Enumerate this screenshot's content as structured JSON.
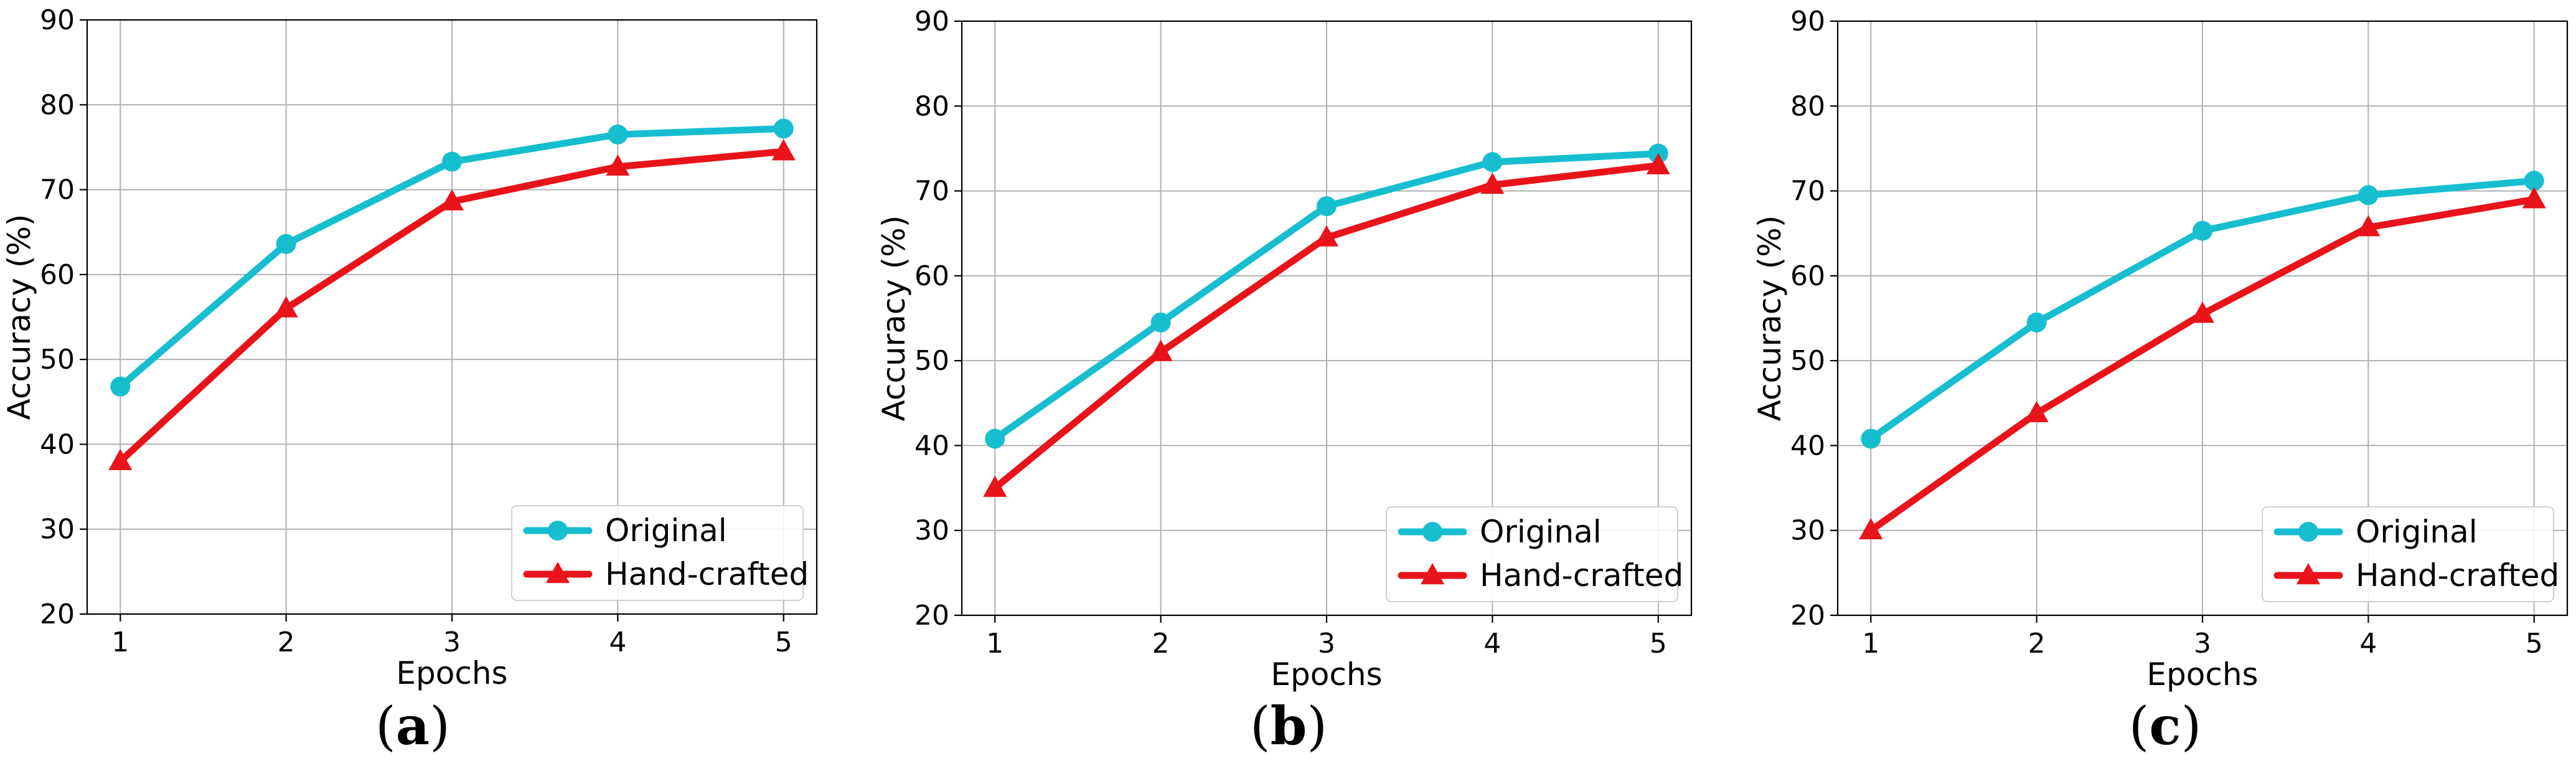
{
  "chart_data": [
    {
      "type": "line",
      "panel_label": "(a)",
      "panel_letter": "a",
      "xlabel": "Epochs",
      "ylabel": "Accuracy (%)",
      "x": [
        1,
        2,
        3,
        4,
        5
      ],
      "ylim": [
        20,
        90
      ],
      "yticks": [
        20,
        30,
        40,
        50,
        60,
        70,
        80,
        90
      ],
      "grid": true,
      "legend_position": "bottom-right",
      "series": [
        {
          "name": "Original",
          "color": "#17becf",
          "marker": "circle",
          "values": [
            46.8,
            63.6,
            73.3,
            76.5,
            77.2
          ]
        },
        {
          "name": "Hand-crafted",
          "color": "#e8131b",
          "marker": "triangle",
          "values": [
            38.0,
            56.0,
            68.6,
            72.7,
            74.5
          ]
        }
      ]
    },
    {
      "type": "line",
      "panel_label": "(b)",
      "panel_letter": "b",
      "xlabel": "Epochs",
      "ylabel": "Accuracy (%)",
      "x": [
        1,
        2,
        3,
        4,
        5
      ],
      "ylim": [
        20,
        90
      ],
      "yticks": [
        20,
        30,
        40,
        50,
        60,
        70,
        80,
        90
      ],
      "grid": true,
      "legend_position": "bottom-right",
      "series": [
        {
          "name": "Original",
          "color": "#17becf",
          "marker": "circle",
          "values": [
            40.8,
            54.5,
            68.2,
            73.4,
            74.4
          ]
        },
        {
          "name": "Hand-crafted",
          "color": "#e8131b",
          "marker": "triangle",
          "values": [
            35.0,
            51.0,
            64.5,
            70.7,
            73.0
          ]
        }
      ]
    },
    {
      "type": "line",
      "panel_label": "(c)",
      "panel_letter": "c",
      "xlabel": "Epochs",
      "ylabel": "Accuracy (%)",
      "x": [
        1,
        2,
        3,
        4,
        5
      ],
      "ylim": [
        20,
        90
      ],
      "yticks": [
        20,
        30,
        40,
        50,
        60,
        70,
        80,
        90
      ],
      "grid": true,
      "legend_position": "bottom-right",
      "series": [
        {
          "name": "Original",
          "color": "#17becf",
          "marker": "circle",
          "values": [
            40.8,
            54.5,
            65.3,
            69.5,
            71.2
          ]
        },
        {
          "name": "Hand-crafted",
          "color": "#e8131b",
          "marker": "triangle",
          "values": [
            30.0,
            43.8,
            55.5,
            65.7,
            69.0
          ]
        }
      ]
    }
  ]
}
